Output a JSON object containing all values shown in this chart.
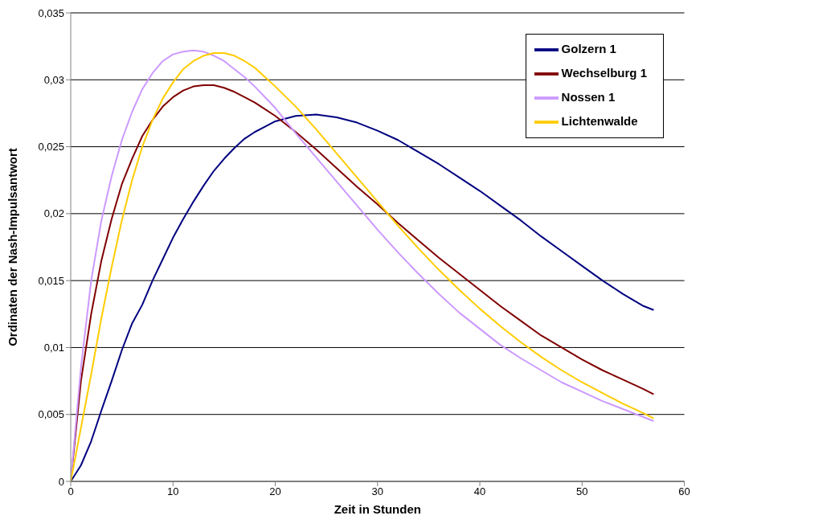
{
  "chart_data": {
    "type": "line",
    "xlabel": "Zeit in Stunden",
    "ylabel": "Ordinaten der Nash-Impulsantwort",
    "x": [
      0,
      1,
      2,
      3,
      4,
      5,
      6,
      7,
      8,
      9,
      10,
      11,
      12,
      13,
      14,
      15,
      16,
      17,
      18,
      19,
      20,
      22,
      24,
      26,
      28,
      30,
      32,
      34,
      36,
      38,
      40,
      42,
      44,
      46,
      48,
      50,
      52,
      54,
      56,
      57
    ],
    "series": [
      {
        "name": "Golzern 1",
        "color": "#000080",
        "values": [
          0,
          0.0012,
          0.003,
          0.0053,
          0.0075,
          0.0098,
          0.0118,
          0.0132,
          0.015,
          0.0166,
          0.0182,
          0.0196,
          0.0209,
          0.0221,
          0.0232,
          0.0241,
          0.0249,
          0.0256,
          0.0261,
          0.0265,
          0.0269,
          0.0273,
          0.0274,
          0.0272,
          0.0268,
          0.0262,
          0.0255,
          0.0246,
          0.0237,
          0.0227,
          0.0217,
          0.0206,
          0.0195,
          0.0183,
          0.0172,
          0.0161,
          0.015,
          0.014,
          0.0131,
          0.0128
        ]
      },
      {
        "name": "Wechselburg 1",
        "color": "#800000",
        "values": [
          0,
          0.0075,
          0.0125,
          0.0165,
          0.0196,
          0.0222,
          0.0241,
          0.0258,
          0.027,
          0.028,
          0.0287,
          0.0292,
          0.0295,
          0.0296,
          0.0296,
          0.0294,
          0.0291,
          0.0287,
          0.0283,
          0.0278,
          0.0273,
          0.0261,
          0.0248,
          0.0234,
          0.022,
          0.0207,
          0.0193,
          0.018,
          0.0167,
          0.0155,
          0.0143,
          0.0131,
          0.012,
          0.0109,
          0.01,
          0.0091,
          0.0083,
          0.0076,
          0.0069,
          0.0065
        ]
      },
      {
        "name": "Nossen 1",
        "color": "#cc99ff",
        "values": [
          0,
          0.0085,
          0.015,
          0.0195,
          0.0228,
          0.0255,
          0.0276,
          0.0293,
          0.0305,
          0.0314,
          0.0319,
          0.0321,
          0.0322,
          0.0321,
          0.0318,
          0.0314,
          0.0308,
          0.0302,
          0.0295,
          0.0287,
          0.0279,
          0.026,
          0.0242,
          0.0224,
          0.0206,
          0.0188,
          0.0171,
          0.0155,
          0.014,
          0.0126,
          0.0114,
          0.0102,
          0.0092,
          0.0083,
          0.0074,
          0.0067,
          0.006,
          0.0054,
          0.0048,
          0.0045
        ]
      },
      {
        "name": "Lichtenwalde",
        "color": "#ffcc00",
        "values": [
          0,
          0.004,
          0.008,
          0.0122,
          0.016,
          0.0195,
          0.0225,
          0.025,
          0.027,
          0.0286,
          0.0298,
          0.0308,
          0.0314,
          0.0318,
          0.032,
          0.032,
          0.0318,
          0.0314,
          0.0309,
          0.0302,
          0.0295,
          0.028,
          0.0263,
          0.0245,
          0.0227,
          0.0209,
          0.0191,
          0.0174,
          0.0158,
          0.0143,
          0.0129,
          0.0116,
          0.0104,
          0.0093,
          0.0083,
          0.0074,
          0.0066,
          0.0058,
          0.0051,
          0.0047
        ]
      }
    ],
    "xlim": [
      0,
      60
    ],
    "xticks": [
      0,
      10,
      20,
      30,
      40,
      50,
      60
    ],
    "ylim": [
      0,
      0.035
    ],
    "yticks": [
      0,
      {
        "value": 0.005,
        "label": "0,005"
      },
      {
        "value": 0.01,
        "label": "0,01"
      },
      {
        "value": 0.015,
        "label": "0,015"
      },
      {
        "value": 0.02,
        "label": "0,02"
      },
      {
        "value": 0.025,
        "label": "0,025"
      },
      {
        "value": 0.03,
        "label": "0,03"
      },
      {
        "value": 0.035,
        "label": "0,035"
      }
    ],
    "grid": "y",
    "legend": "top right",
    "marker": "none",
    "line_style": "solid"
  }
}
